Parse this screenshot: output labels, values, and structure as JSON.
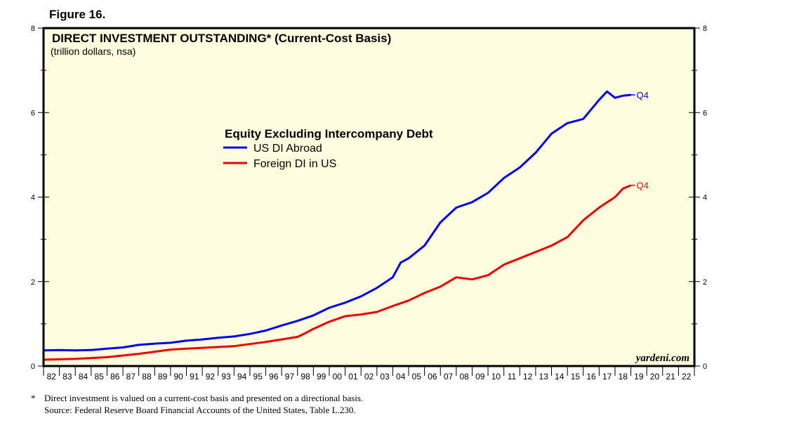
{
  "figure_label": "Figure 16.",
  "footnote_marker": "*",
  "footnote": "Direct investment is valued on a current-cost basis and presented on a directional basis.",
  "source": "Source: Federal Reserve Board Financial Accounts of the United States, Table L.230.",
  "watermark": "yardeni.com",
  "colors": {
    "background": "#FFFDE0",
    "us_abroad": "#0000EE",
    "foreign_in_us": "#EE0000"
  },
  "chart_data": {
    "type": "line",
    "title": "DIRECT INVESTMENT OUTSTANDING* (Current-Cost Basis)",
    "subtitle": "(trillion dollars, nsa)",
    "legend_title": "Equity Excluding Intercompany Debt",
    "ylim": [
      0,
      8
    ],
    "xlim": [
      1982,
      2023
    ],
    "y_ticks_left": [
      "0",
      "2",
      "4",
      "6",
      "8"
    ],
    "y_ticks_right": [
      "0",
      "2",
      "4",
      "6",
      "8"
    ],
    "x_tick_labels": [
      "82",
      "83",
      "84",
      "85",
      "86",
      "87",
      "88",
      "89",
      "90",
      "91",
      "92",
      "93",
      "94",
      "95",
      "96",
      "97",
      "98",
      "99",
      "00",
      "01",
      "02",
      "03",
      "04",
      "05",
      "06",
      "07",
      "08",
      "09",
      "10",
      "11",
      "12",
      "13",
      "14",
      "15",
      "16",
      "17",
      "18",
      "19",
      "20",
      "21",
      "22"
    ],
    "series": [
      {
        "name": "US DI Abroad",
        "end_label": "Q4",
        "color": "#0000EE",
        "x": [
          1982,
          1983,
          1984,
          1985,
          1986,
          1987,
          1988,
          1989,
          1990,
          1991,
          1992,
          1993,
          1994,
          1995,
          1996,
          1997,
          1998,
          1999,
          2000,
          2001,
          2002,
          2003,
          2004,
          2004.5,
          2005,
          2006,
          2007,
          2008,
          2009,
          2010,
          2011,
          2012,
          2013,
          2014,
          2015,
          2016,
          2017,
          2017.5,
          2018,
          2018.5,
          2019
        ],
        "values": [
          0.37,
          0.38,
          0.37,
          0.38,
          0.41,
          0.44,
          0.5,
          0.53,
          0.55,
          0.6,
          0.63,
          0.67,
          0.7,
          0.76,
          0.84,
          0.96,
          1.07,
          1.2,
          1.38,
          1.5,
          1.65,
          1.85,
          2.1,
          2.45,
          2.55,
          2.85,
          3.4,
          3.75,
          3.88,
          4.1,
          4.45,
          4.7,
          5.05,
          5.5,
          5.75,
          5.85,
          6.3,
          6.5,
          6.35,
          6.4,
          6.42
        ]
      },
      {
        "name": "Foreign DI in US",
        "end_label": "Q4",
        "color": "#EE0000",
        "x": [
          1982,
          1983,
          1984,
          1985,
          1986,
          1987,
          1988,
          1989,
          1990,
          1991,
          1992,
          1993,
          1994,
          1995,
          1996,
          1997,
          1998,
          1998.5,
          1999,
          2000,
          2001,
          2002,
          2003,
          2004,
          2005,
          2006,
          2007,
          2008,
          2009,
          2010,
          2011,
          2012,
          2013,
          2014,
          2015,
          2016,
          2017,
          2018,
          2018.5,
          2019
        ],
        "values": [
          0.15,
          0.16,
          0.17,
          0.19,
          0.21,
          0.25,
          0.29,
          0.34,
          0.39,
          0.41,
          0.43,
          0.45,
          0.47,
          0.52,
          0.57,
          0.63,
          0.69,
          0.78,
          0.88,
          1.05,
          1.18,
          1.22,
          1.28,
          1.42,
          1.55,
          1.73,
          1.88,
          2.1,
          2.05,
          2.15,
          2.4,
          2.55,
          2.7,
          2.85,
          3.05,
          3.45,
          3.75,
          4.0,
          4.2,
          4.28
        ]
      }
    ]
  }
}
